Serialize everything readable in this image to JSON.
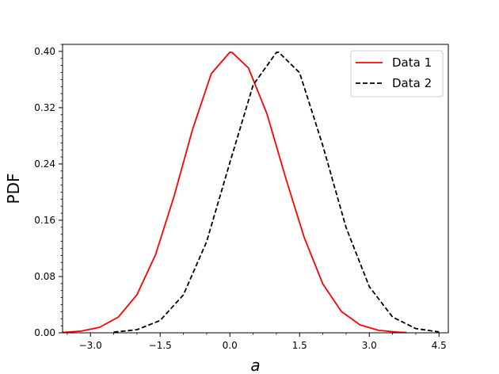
{
  "chart_data": {
    "type": "line",
    "title": "",
    "xlabel": "a",
    "ylabel": "PDF",
    "xlim": [
      -3.6,
      4.7
    ],
    "ylim": [
      0.0,
      0.41
    ],
    "x_ticks": [
      -3.0,
      -1.5,
      0.0,
      1.5,
      3.0,
      4.5
    ],
    "x_tick_labels": [
      "−3.0",
      "−1.5",
      "0.0",
      "1.5",
      "3.0",
      "4.5"
    ],
    "y_ticks": [
      0.0,
      0.08,
      0.16,
      0.24,
      0.32,
      0.4
    ],
    "y_tick_labels": [
      "0.00",
      "0.08",
      "0.16",
      "0.24",
      "0.32",
      "0.40"
    ],
    "grid": false,
    "legend_position": "top-right",
    "series": [
      {
        "name": "Data 1",
        "color": "#ff0000",
        "style": "solid",
        "x": [
          -3.6,
          -3.2,
          -2.8,
          -2.4,
          -2.0,
          -1.6,
          -1.2,
          -0.8,
          -0.4,
          0.0,
          0.05,
          0.4,
          0.8,
          1.2,
          1.6,
          2.0,
          2.4,
          2.8,
          3.2,
          3.6,
          3.8
        ],
        "y": [
          0.0006,
          0.0024,
          0.0079,
          0.0224,
          0.054,
          0.1109,
          0.1942,
          0.2897,
          0.3683,
          0.3989,
          0.3984,
          0.3765,
          0.3109,
          0.2203,
          0.1354,
          0.0694,
          0.0303,
          0.0113,
          0.0035,
          0.0009,
          0.0004
        ]
      },
      {
        "name": "Data 2",
        "color": "#000000",
        "style": "dashed",
        "x": [
          -2.5,
          -2.0,
          -1.5,
          -1.0,
          -0.5,
          0.0,
          0.5,
          1.0,
          1.05,
          1.5,
          2.0,
          2.5,
          3.0,
          3.5,
          4.0,
          4.5,
          4.8
        ],
        "y": [
          0.0009,
          0.0044,
          0.0175,
          0.054,
          0.1295,
          0.242,
          0.3521,
          0.3984,
          0.3989,
          0.3697,
          0.2661,
          0.1497,
          0.0656,
          0.0224,
          0.006,
          0.0012,
          0.0004
        ]
      }
    ]
  }
}
